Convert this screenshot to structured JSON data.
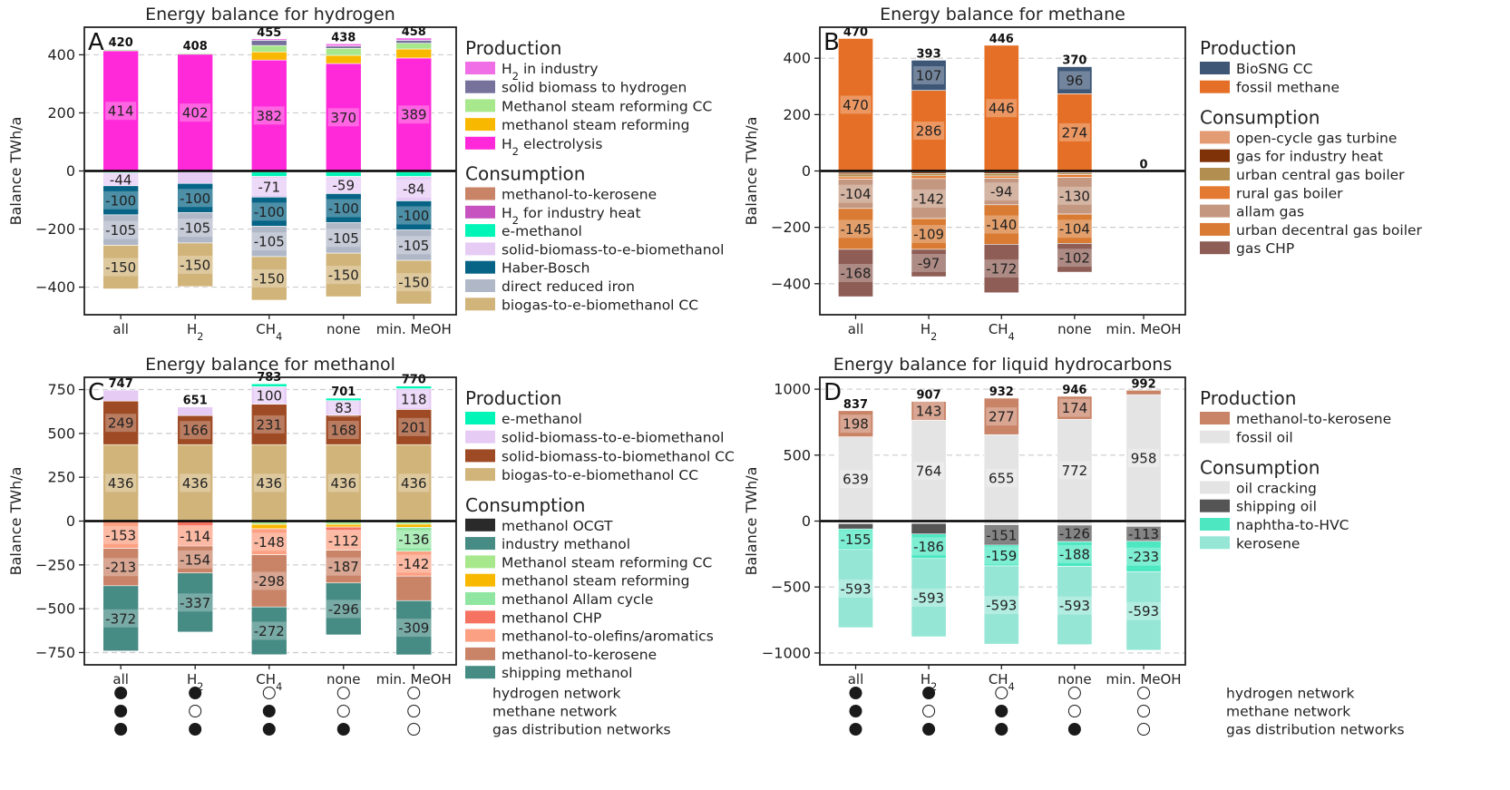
{
  "colors": {
    "H2 in industry": "#f06ee6",
    "solid biomass to hydrogen": "#76729c",
    "Methanol steam reforming CC": "#a8e88c",
    "methanol steam reforming": "#f9b800",
    "H2 electrolysis": "#ff29d9",
    "methanol-to-kerosene": "#c98468",
    "H2 for industry heat": "#cd4f41",
    "H2 for industry heat legend": "#c653c0",
    "e-methanol": "#00f5b6",
    "solid-biomass-to-e-biomethanol": "#e6cbf5",
    "Haber-Bosch": "#076486",
    "direct reduced iron": "#b0b8c8",
    "biogas-to-e-biomethanol CC": "#d1b47a",
    "BioSNG CC": "#3e5777",
    "fossil methane": "#e56f26",
    "open-cycle gas turbine": "#e39b73",
    "gas for industry heat": "#7f3108",
    "urban central gas boiler": "#b28e51",
    "rural gas boiler": "#e47a32",
    "allam gas": "#c49880",
    "urban decentral gas boiler": "#d97b33",
    "gas CHP": "#8e5d55",
    "solid-biomass-to-biomethanol CC": "#9e4a24",
    "methanol OCGT": "#2a2a2a",
    "industry methanol": "#468b84",
    "methanol Allam cycle": "#90e6a0",
    "methanol CHP": "#f57360",
    "methanol-to-olefins/aromatics": "#fba082",
    "shipping methanol": "#468b84",
    "fossil oil": "#e4e4e4",
    "oil cracking": "#e4e4e4",
    "shipping oil": "#555555",
    "naphtha-to-HVC": "#4de8c2",
    "kerosene": "#96e6d6",
    "axis": "#222222",
    "grid": "#cccccc"
  },
  "x_categories": [
    "all",
    "H₂",
    "CH₄",
    "none",
    "min. MeOH"
  ],
  "network_labels": [
    "hydrogen network",
    "methane network",
    "gas distribution networks"
  ],
  "network_matrix": {
    "hydrogen network": [
      1,
      1,
      0,
      0,
      0
    ],
    "methane network": [
      1,
      0,
      1,
      0,
      0
    ],
    "gas distribution networks": [
      1,
      1,
      1,
      1,
      0
    ]
  },
  "legend_headers": {
    "production": "Production",
    "consumption": "Consumption"
  },
  "chart_data": [
    {
      "id": "A",
      "type": "bar",
      "stacked": true,
      "title": "Energy balance for hydrogen",
      "ylabel": "Balance TWh/a",
      "ylim": [
        -495,
        495
      ],
      "yticks": [
        -400,
        -200,
        0,
        200,
        400
      ],
      "categories": [
        "all",
        "H₂",
        "CH₄",
        "none",
        "min. MeOH"
      ],
      "totals": [
        420,
        408,
        455,
        438,
        458
      ],
      "legend_production": [
        "H2 in industry",
        "solid biomass to hydrogen",
        "Methanol steam reforming CC",
        "methanol steam reforming",
        "H2 electrolysis"
      ],
      "legend_consumption": [
        "methanol-to-kerosene",
        "H2 for industry heat",
        "e-methanol",
        "solid-biomass-to-e-biomethanol",
        "Haber-Bosch",
        "direct reduced iron",
        "biogas-to-e-biomethanol CC"
      ],
      "legend_display": {
        "H2 in industry": "H₂ in industry",
        "H2 electrolysis": "H₂ electrolysis",
        "H2 for industry heat": "H₂ for industry heat"
      },
      "positive_series": [
        {
          "name": "H2 electrolysis",
          "values": [
            414,
            402,
            382,
            370,
            389
          ],
          "labels": [
            true,
            true,
            true,
            true,
            true
          ]
        },
        {
          "name": "methanol steam reforming",
          "values": [
            0,
            0,
            28,
            28,
            31
          ],
          "labels": [
            false,
            false,
            false,
            false,
            false
          ]
        },
        {
          "name": "Methanol steam reforming CC",
          "values": [
            4,
            4,
            22,
            24,
            20
          ],
          "labels": [
            false,
            false,
            false,
            false,
            false
          ]
        },
        {
          "name": "solid biomass to hydrogen",
          "values": [
            0,
            0,
            18,
            8,
            10
          ],
          "labels": [
            false,
            false,
            false,
            false,
            false
          ]
        },
        {
          "name": "H2 in industry",
          "values": [
            2,
            2,
            5,
            8,
            8
          ],
          "labels": [
            false,
            false,
            false,
            false,
            false
          ]
        }
      ],
      "negative_series": [
        {
          "name": "H2 for industry heat",
          "values": [
            -4,
            -3,
            -4,
            -4,
            -4
          ],
          "labels": [
            false,
            false,
            false,
            false,
            false
          ]
        },
        {
          "name": "e-methanol",
          "values": [
            -3,
            -1,
            -15,
            -15,
            -15
          ],
          "labels": [
            false,
            false,
            false,
            false,
            false
          ]
        },
        {
          "name": "solid-biomass-to-e-biomethanol",
          "values": [
            -44,
            -39,
            -71,
            -59,
            -84
          ],
          "labels": [
            true,
            false,
            true,
            true,
            true
          ]
        },
        {
          "name": "Haber-Bosch",
          "values": [
            -100,
            -100,
            -100,
            -100,
            -100
          ],
          "labels": [
            true,
            true,
            true,
            true,
            true
          ]
        },
        {
          "name": "direct reduced iron",
          "values": [
            -105,
            -105,
            -105,
            -105,
            -105
          ],
          "labels": [
            true,
            true,
            true,
            true,
            true
          ]
        },
        {
          "name": "biogas-to-e-biomethanol CC",
          "values": [
            -150,
            -150,
            -150,
            -150,
            -150
          ],
          "labels": [
            true,
            true,
            true,
            true,
            true
          ]
        }
      ]
    },
    {
      "id": "B",
      "type": "bar",
      "stacked": true,
      "title": "Energy balance for methane",
      "ylabel": "Balance TWh/a",
      "ylim": [
        -510,
        510
      ],
      "yticks": [
        -400,
        -200,
        0,
        200,
        400
      ],
      "categories": [
        "all",
        "H₂",
        "CH₄",
        "none",
        "min. MeOH"
      ],
      "totals": [
        470,
        393,
        446,
        370,
        0
      ],
      "legend_production": [
        "BioSNG CC",
        "fossil methane"
      ],
      "legend_consumption": [
        "open-cycle gas turbine",
        "gas for industry heat",
        "urban central gas boiler",
        "rural gas boiler",
        "allam gas",
        "urban decentral gas boiler",
        "gas CHP"
      ],
      "legend_display": {},
      "positive_series": [
        {
          "name": "fossil methane",
          "values": [
            470,
            286,
            446,
            274,
            0
          ],
          "labels": [
            true,
            true,
            true,
            true,
            false
          ]
        },
        {
          "name": "BioSNG CC",
          "values": [
            0,
            107,
            0,
            96,
            0
          ],
          "labels": [
            false,
            true,
            false,
            true,
            false
          ]
        }
      ],
      "negative_series": [
        {
          "name": "open-cycle gas turbine",
          "values": [
            -5,
            -4,
            -4,
            -3,
            0
          ],
          "labels": [
            false,
            false,
            false,
            false,
            false
          ]
        },
        {
          "name": "gas for industry heat",
          "values": [
            -6,
            -5,
            -5,
            -4,
            0
          ],
          "labels": [
            false,
            false,
            false,
            false,
            false
          ]
        },
        {
          "name": "urban central gas boiler",
          "values": [
            -10,
            -8,
            -9,
            -6,
            0
          ],
          "labels": [
            false,
            false,
            false,
            false,
            false
          ]
        },
        {
          "name": "rural gas boiler",
          "values": [
            -8,
            -10,
            -8,
            -10,
            0
          ],
          "labels": [
            false,
            false,
            false,
            false,
            false
          ]
        },
        {
          "name": "allam gas",
          "values": [
            -104,
            -142,
            -94,
            -130,
            0
          ],
          "labels": [
            true,
            true,
            true,
            true,
            false
          ]
        },
        {
          "name": "urban decentral gas boiler",
          "values": [
            -145,
            -109,
            -140,
            -104,
            0
          ],
          "labels": [
            true,
            true,
            true,
            true,
            false
          ]
        },
        {
          "name": "gas CHP",
          "values": [
            -168,
            -97,
            -172,
            -102,
            0
          ],
          "labels": [
            true,
            true,
            true,
            true,
            false
          ]
        }
      ]
    },
    {
      "id": "C",
      "type": "bar",
      "stacked": true,
      "title": "Energy balance for methanol",
      "ylabel": "Balance TWh/a",
      "ylim": [
        -820,
        820
      ],
      "yticks": [
        -750,
        -500,
        -250,
        0,
        250,
        500,
        750
      ],
      "categories": [
        "all",
        "H₂",
        "CH₄",
        "none",
        "min. MeOH"
      ],
      "totals": [
        747,
        651,
        783,
        701,
        770
      ],
      "legend_production": [
        "e-methanol",
        "solid-biomass-to-e-biomethanol",
        "solid-biomass-to-biomethanol CC",
        "biogas-to-e-biomethanol CC"
      ],
      "legend_consumption": [
        "methanol OCGT",
        "industry methanol",
        "Methanol steam reforming CC",
        "methanol steam reforming",
        "methanol Allam cycle",
        "methanol CHP",
        "methanol-to-olefins/aromatics",
        "methanol-to-kerosene",
        "shipping methanol"
      ],
      "legend_display": {},
      "positive_series": [
        {
          "name": "biogas-to-e-biomethanol CC",
          "values": [
            436,
            436,
            436,
            436,
            436
          ],
          "labels": [
            true,
            true,
            true,
            true,
            true
          ]
        },
        {
          "name": "solid-biomass-to-biomethanol CC",
          "values": [
            249,
            166,
            231,
            168,
            201
          ],
          "labels": [
            true,
            true,
            true,
            true,
            true
          ]
        },
        {
          "name": "solid-biomass-to-e-biomethanol",
          "values": [
            62,
            49,
            100,
            83,
            118
          ],
          "labels": [
            false,
            false,
            true,
            true,
            true
          ]
        },
        {
          "name": "e-methanol",
          "values": [
            0,
            0,
            16,
            14,
            15
          ],
          "labels": [
            false,
            false,
            false,
            false,
            false
          ]
        }
      ],
      "negative_series": [
        {
          "name": "methanol OCGT",
          "values": [
            0,
            0,
            -4,
            -4,
            -5
          ],
          "labels": [
            false,
            false,
            false,
            false,
            false
          ]
        },
        {
          "name": "Methanol steam reforming CC",
          "values": [
            -3,
            -3,
            -15,
            -15,
            -13
          ],
          "labels": [
            false,
            false,
            false,
            false,
            false
          ]
        },
        {
          "name": "methanol steam reforming",
          "values": [
            0,
            0,
            -25,
            -15,
            -18
          ],
          "labels": [
            false,
            false,
            false,
            false,
            false
          ]
        },
        {
          "name": "methanol CHP",
          "values": [
            0,
            -25,
            0,
            -20,
            0
          ],
          "labels": [
            false,
            false,
            false,
            false,
            false
          ]
        },
        {
          "name": "methanol Allam cycle",
          "values": [
            0,
            0,
            0,
            0,
            -136
          ],
          "labels": [
            false,
            false,
            false,
            false,
            true
          ]
        },
        {
          "name": "methanol-to-olefins/aromatics",
          "values": [
            -153,
            -114,
            -148,
            -112,
            -142
          ],
          "labels": [
            true,
            true,
            true,
            true,
            true
          ]
        },
        {
          "name": "methanol-to-kerosene",
          "values": [
            -213,
            -154,
            -298,
            -187,
            -140
          ],
          "labels": [
            true,
            true,
            true,
            true,
            false
          ]
        },
        {
          "name": "shipping methanol",
          "values": [
            -372,
            -337,
            -272,
            -296,
            -309
          ],
          "labels": [
            true,
            true,
            true,
            true,
            true
          ]
        }
      ]
    },
    {
      "id": "D",
      "type": "bar",
      "stacked": true,
      "title": "Energy balance for liquid hydrocarbons",
      "ylabel": "Balance TWh/a",
      "ylim": [
        -1090,
        1090
      ],
      "yticks": [
        -1000,
        -500,
        0,
        500,
        1000
      ],
      "categories": [
        "all",
        "H₂",
        "CH₄",
        "none",
        "min. MeOH"
      ],
      "totals": [
        837,
        907,
        932,
        946,
        992
      ],
      "legend_production": [
        "methanol-to-kerosene",
        "fossil oil"
      ],
      "legend_consumption": [
        "oil cracking",
        "shipping oil",
        "naphtha-to-HVC",
        "kerosene"
      ],
      "legend_display": {},
      "positive_series": [
        {
          "name": "fossil oil",
          "values": [
            639,
            764,
            655,
            772,
            958
          ],
          "labels": [
            true,
            true,
            true,
            true,
            true
          ]
        },
        {
          "name": "methanol-to-kerosene",
          "values": [
            198,
            143,
            277,
            174,
            34
          ],
          "labels": [
            true,
            true,
            true,
            true,
            false
          ]
        }
      ],
      "negative_series": [
        {
          "name": "oil cracking",
          "values": [
            -20,
            -18,
            -30,
            -30,
            -40
          ],
          "labels": [
            false,
            false,
            false,
            false,
            false
          ]
        },
        {
          "name": "shipping oil",
          "values": [
            -40,
            -80,
            -151,
            -126,
            -113
          ],
          "labels": [
            false,
            false,
            true,
            true,
            true
          ]
        },
        {
          "name": "naphtha-to-HVC",
          "values": [
            -155,
            -186,
            -159,
            -188,
            -233
          ],
          "labels": [
            true,
            true,
            true,
            true,
            true
          ]
        },
        {
          "name": "kerosene",
          "values": [
            -593,
            -593,
            -593,
            -593,
            -593
          ],
          "labels": [
            true,
            true,
            true,
            true,
            true
          ]
        }
      ]
    }
  ]
}
